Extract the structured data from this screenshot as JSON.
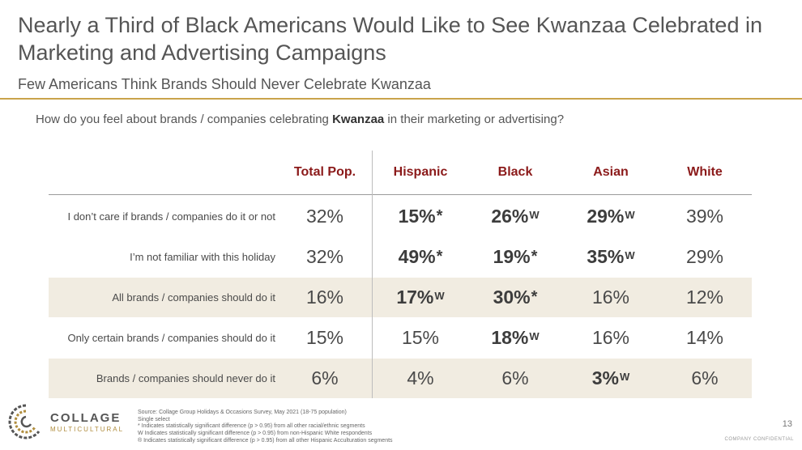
{
  "title": "Nearly a Third of Black Americans Would Like to See Kwanzaa Celebrated in Marketing and Advertising Campaigns",
  "subtitle": "Few Americans Think Brands Should Never Celebrate Kwanzaa",
  "question": {
    "before": "How do you feel about brands / companies celebrating ",
    "bold": "Kwanzaa",
    "after": " in their marketing or advertising?"
  },
  "columns": [
    "Total Pop.",
    "Hispanic",
    "Black",
    "Asian",
    "White"
  ],
  "rows": [
    {
      "label": "I don’t care if brands / companies do it or not",
      "shaded": false,
      "cells": [
        {
          "value": "32%",
          "mark": "",
          "bold": false
        },
        {
          "value": "15%",
          "mark": "*",
          "bold": true
        },
        {
          "value": "26%",
          "mark": "W",
          "bold": true
        },
        {
          "value": "29%",
          "mark": "W",
          "bold": true
        },
        {
          "value": "39%",
          "mark": "",
          "bold": false
        }
      ]
    },
    {
      "label": "I’m not familiar with this holiday",
      "shaded": false,
      "cells": [
        {
          "value": "32%",
          "mark": "",
          "bold": false
        },
        {
          "value": "49%",
          "mark": "*",
          "bold": true
        },
        {
          "value": "19%",
          "mark": "*",
          "bold": true
        },
        {
          "value": "35%",
          "mark": "W",
          "bold": true
        },
        {
          "value": "29%",
          "mark": "",
          "bold": false
        }
      ]
    },
    {
      "label": "All brands / companies should do it",
      "shaded": true,
      "cells": [
        {
          "value": "16%",
          "mark": "",
          "bold": false
        },
        {
          "value": "17%",
          "mark": "W",
          "bold": true
        },
        {
          "value": "30%",
          "mark": "*",
          "bold": true
        },
        {
          "value": "16%",
          "mark": "",
          "bold": false
        },
        {
          "value": "12%",
          "mark": "",
          "bold": false
        }
      ]
    },
    {
      "label": "Only certain brands / companies should do it",
      "shaded": false,
      "cells": [
        {
          "value": "15%",
          "mark": "",
          "bold": false
        },
        {
          "value": "15%",
          "mark": "",
          "bold": false
        },
        {
          "value": "18%",
          "mark": "W",
          "bold": true
        },
        {
          "value": "16%",
          "mark": "",
          "bold": false
        },
        {
          "value": "14%",
          "mark": "",
          "bold": false
        }
      ]
    },
    {
      "label": "Brands / companies should never do it",
      "shaded": true,
      "cells": [
        {
          "value": "6%",
          "mark": "",
          "bold": false
        },
        {
          "value": "4%",
          "mark": "",
          "bold": false
        },
        {
          "value": "6%",
          "mark": "",
          "bold": false
        },
        {
          "value": "3%",
          "mark": "W",
          "bold": true
        },
        {
          "value": "6%",
          "mark": "",
          "bold": false
        }
      ]
    }
  ],
  "notes": [
    "Source: Collage Group Holidays & Occasions Survey, May 2021 (18-75 population)",
    "Single select",
    "* Indicates statistically significant difference (p > 0.95) from all other racial/ethnic segments",
    "W Indicates statistically significant difference (p > 0.95) from non-Hispanic White respondents",
    "® Indicates statistically significant difference (p > 0.95) from all other Hispanic Acculturation segments"
  ],
  "logo": {
    "line1": "COLLAGE",
    "line2": "MULTICULTURAL"
  },
  "page_number": "13",
  "confidential": "COMPANY CONFIDENTIAL",
  "colors": {
    "accent": "#8b1a1a",
    "rule": "#c9a34a",
    "shade": "#f1ece1"
  }
}
